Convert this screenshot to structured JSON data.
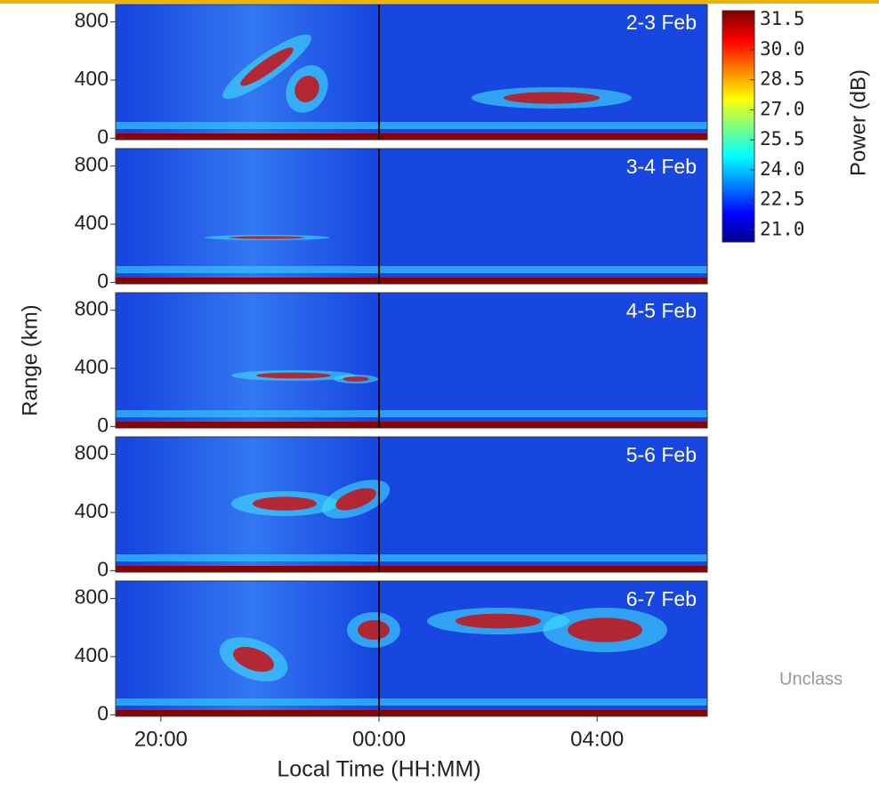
{
  "chart_data": {
    "type": "range-time-panels",
    "panels": [
      "2-3 Feb",
      "3-4 Feb",
      "4-5 Feb",
      "5-6 Feb",
      "6-7 Feb"
    ],
    "ylabel": "Range (km)",
    "xlabel": "Local Time (HH:MM)",
    "ylim": [
      -10,
      920
    ],
    "yticks": [
      0,
      400,
      800
    ],
    "xlim": [
      19.17,
      30.02
    ],
    "xticks": [
      {
        "value": 20,
        "label": "20:00"
      },
      {
        "value": 24,
        "label": "00:00"
      },
      {
        "value": 28,
        "label": "04:00"
      }
    ],
    "colorbar": {
      "label": "Power (dB)",
      "clim": [
        20.4,
        31.95
      ],
      "ticks": [
        31.5,
        {
          "value": 30,
          "label": "30.0"
        },
        28.5,
        {
          "value": 27,
          "label": "27.0"
        },
        25.5,
        {
          "value": 24,
          "label": "24.0"
        },
        22.5,
        {
          "value": 21,
          "label": "21.0"
        }
      ]
    }
  },
  "footer": "Unclass"
}
